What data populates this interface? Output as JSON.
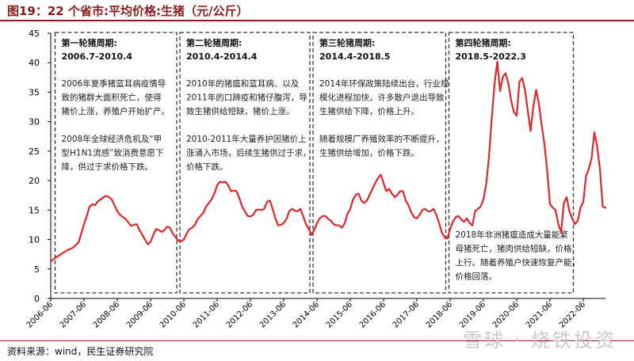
{
  "figure": {
    "title": "图19：22 个省市:平均价格:生猪（元/公斤）",
    "source": "资料来源：wind，民生证券研究院",
    "watermark": "雪球 · 烧铁投资"
  },
  "colors": {
    "line": "#e0262a",
    "header": "#8b1a1a",
    "box": "#333333"
  },
  "chart_data": {
    "type": "line",
    "title": "22 个省市:平均价格:生猪",
    "ylabel": "元/公斤",
    "xlabel": "",
    "ylim": [
      0,
      45
    ],
    "yticks": [
      0,
      5,
      10,
      15,
      20,
      25,
      30,
      35,
      40,
      45
    ],
    "xticks": [
      "2006-06",
      "2007-06",
      "2008-06",
      "2009-06",
      "2010-06",
      "2011-06",
      "2012-06",
      "2013-06",
      "2014-06",
      "2015-06",
      "2016-06",
      "2017-06",
      "2018-06",
      "2019-06",
      "2020-06",
      "2021-06",
      "2022-06"
    ],
    "series": [
      {
        "values": [
          [
            "2006-06",
            6.3
          ],
          [
            "2006-08",
            7.0
          ],
          [
            "2006-10",
            7.6
          ],
          [
            "2006-12",
            8.2
          ],
          [
            "2007-02",
            8.6
          ],
          [
            "2007-04",
            9.5
          ],
          [
            "2007-05",
            11.0
          ],
          [
            "2007-06",
            12.6
          ],
          [
            "2007-07",
            14.0
          ],
          [
            "2007-08",
            15.6
          ],
          [
            "2007-09",
            16.0
          ],
          [
            "2007-10",
            15.8
          ],
          [
            "2007-11",
            16.5
          ],
          [
            "2007-12",
            16.8
          ],
          [
            "2008-01",
            17.2
          ],
          [
            "2008-02",
            17.4
          ],
          [
            "2008-03",
            17.2
          ],
          [
            "2008-04",
            16.8
          ],
          [
            "2008-05",
            15.8
          ],
          [
            "2008-06",
            14.8
          ],
          [
            "2008-07",
            14.2
          ],
          [
            "2008-08",
            13.8
          ],
          [
            "2008-09",
            13.5
          ],
          [
            "2008-10",
            12.9
          ],
          [
            "2008-11",
            12.3
          ],
          [
            "2008-12",
            12.5
          ],
          [
            "2009-01",
            12.6
          ],
          [
            "2009-02",
            11.6
          ],
          [
            "2009-03",
            10.8
          ],
          [
            "2009-04",
            10.0
          ],
          [
            "2009-05",
            9.2
          ],
          [
            "2009-06",
            9.6
          ],
          [
            "2009-07",
            10.8
          ],
          [
            "2009-08",
            11.8
          ],
          [
            "2009-09",
            11.6
          ],
          [
            "2009-10",
            11.3
          ],
          [
            "2009-11",
            11.6
          ],
          [
            "2009-12",
            12.2
          ],
          [
            "2010-01",
            12.0
          ],
          [
            "2010-02",
            11.0
          ],
          [
            "2010-03",
            10.4
          ],
          [
            "2010-04",
            9.8
          ],
          [
            "2010-05",
            9.7
          ],
          [
            "2010-06",
            10.0
          ],
          [
            "2010-07",
            11.0
          ],
          [
            "2010-08",
            11.8
          ],
          [
            "2010-09",
            12.0
          ],
          [
            "2010-10",
            12.5
          ],
          [
            "2010-11",
            13.5
          ],
          [
            "2010-12",
            14.0
          ],
          [
            "2011-01",
            14.5
          ],
          [
            "2011-02",
            15.6
          ],
          [
            "2011-03",
            16.2
          ],
          [
            "2011-04",
            16.8
          ],
          [
            "2011-05",
            17.8
          ],
          [
            "2011-06",
            19.2
          ],
          [
            "2011-07",
            19.8
          ],
          [
            "2011-08",
            19.7
          ],
          [
            "2011-09",
            19.8
          ],
          [
            "2011-10",
            19.2
          ],
          [
            "2011-11",
            18.2
          ],
          [
            "2011-12",
            18.3
          ],
          [
            "2012-01",
            18.2
          ],
          [
            "2012-02",
            17.0
          ],
          [
            "2012-03",
            15.6
          ],
          [
            "2012-04",
            14.8
          ],
          [
            "2012-05",
            14.0
          ],
          [
            "2012-06",
            13.9
          ],
          [
            "2012-07",
            14.2
          ],
          [
            "2012-08",
            15.0
          ],
          [
            "2012-09",
            15.1
          ],
          [
            "2012-10",
            15.0
          ],
          [
            "2012-11",
            15.2
          ],
          [
            "2012-12",
            16.4
          ],
          [
            "2013-01",
            16.6
          ],
          [
            "2013-02",
            15.2
          ],
          [
            "2013-03",
            13.6
          ],
          [
            "2013-04",
            12.4
          ],
          [
            "2013-05",
            12.5
          ],
          [
            "2013-06",
            12.8
          ],
          [
            "2013-07",
            13.5
          ],
          [
            "2013-08",
            14.8
          ],
          [
            "2013-09",
            15.2
          ],
          [
            "2013-10",
            14.9
          ],
          [
            "2013-11",
            14.8
          ],
          [
            "2013-12",
            15.2
          ],
          [
            "2014-01",
            14.0
          ],
          [
            "2014-02",
            12.6
          ],
          [
            "2014-03",
            11.8
          ],
          [
            "2014-04",
            10.8
          ],
          [
            "2014-05",
            11.6
          ],
          [
            "2014-06",
            12.8
          ],
          [
            "2014-07",
            13.6
          ],
          [
            "2014-08",
            14.0
          ],
          [
            "2014-09",
            14.0
          ],
          [
            "2014-10",
            13.5
          ],
          [
            "2014-11",
            13.2
          ],
          [
            "2014-12",
            12.6
          ],
          [
            "2015-01",
            12.4
          ],
          [
            "2015-02",
            12.4
          ],
          [
            "2015-03",
            12.0
          ],
          [
            "2015-04",
            12.8
          ],
          [
            "2015-05",
            14.4
          ],
          [
            "2015-06",
            15.2
          ],
          [
            "2015-07",
            16.8
          ],
          [
            "2015-08",
            17.6
          ],
          [
            "2015-09",
            17.8
          ],
          [
            "2015-10",
            16.6
          ],
          [
            "2015-11",
            16.2
          ],
          [
            "2015-12",
            16.6
          ],
          [
            "2016-01",
            17.6
          ],
          [
            "2016-02",
            18.6
          ],
          [
            "2016-03",
            19.6
          ],
          [
            "2016-04",
            20.4
          ],
          [
            "2016-05",
            21.0
          ],
          [
            "2016-06",
            19.6
          ],
          [
            "2016-07",
            18.2
          ],
          [
            "2016-08",
            18.6
          ],
          [
            "2016-09",
            17.8
          ],
          [
            "2016-10",
            17.2
          ],
          [
            "2016-11",
            17.6
          ],
          [
            "2016-12",
            18.2
          ],
          [
            "2017-01",
            18.2
          ],
          [
            "2017-02",
            16.6
          ],
          [
            "2017-03",
            15.8
          ],
          [
            "2017-04",
            14.6
          ],
          [
            "2017-05",
            13.8
          ],
          [
            "2017-06",
            13.6
          ],
          [
            "2017-07",
            14.2
          ],
          [
            "2017-08",
            15.0
          ],
          [
            "2017-09",
            15.2
          ],
          [
            "2017-10",
            14.8
          ],
          [
            "2017-11",
            14.8
          ],
          [
            "2017-12",
            15.2
          ],
          [
            "2018-01",
            14.2
          ],
          [
            "2018-02",
            12.8
          ],
          [
            "2018-03",
            11.2
          ],
          [
            "2018-04",
            10.4
          ],
          [
            "2018-05",
            10.2
          ],
          [
            "2018-06",
            11.8
          ],
          [
            "2018-07",
            13.0
          ],
          [
            "2018-08",
            13.8
          ],
          [
            "2018-09",
            14.0
          ],
          [
            "2018-10",
            13.4
          ],
          [
            "2018-11",
            13.0
          ],
          [
            "2018-12",
            13.6
          ],
          [
            "2019-01",
            12.8
          ],
          [
            "2019-02",
            12.4
          ],
          [
            "2019-03",
            14.8
          ],
          [
            "2019-04",
            15.2
          ],
          [
            "2019-05",
            15.6
          ],
          [
            "2019-06",
            16.8
          ],
          [
            "2019-07",
            19.4
          ],
          [
            "2019-08",
            24.0
          ],
          [
            "2019-09",
            30.6
          ],
          [
            "2019-10",
            36.4
          ],
          [
            "2019-11",
            40.2
          ],
          [
            "2019-12",
            35.2
          ],
          [
            "2020-01",
            37.6
          ],
          [
            "2020-02",
            38.2
          ],
          [
            "2020-03",
            36.4
          ],
          [
            "2020-04",
            33.6
          ],
          [
            "2020-05",
            31.6
          ],
          [
            "2020-06",
            31.0
          ],
          [
            "2020-07",
            36.8
          ],
          [
            "2020-08",
            37.4
          ],
          [
            "2020-09",
            35.4
          ],
          [
            "2020-10",
            31.8
          ],
          [
            "2020-11",
            28.4
          ],
          [
            "2020-12",
            32.6
          ],
          [
            "2021-01",
            35.4
          ],
          [
            "2021-02",
            33.0
          ],
          [
            "2021-03",
            29.4
          ],
          [
            "2021-04",
            26.2
          ],
          [
            "2021-05",
            21.6
          ],
          [
            "2021-06",
            16.0
          ],
          [
            "2021-07",
            15.4
          ],
          [
            "2021-08",
            15.0
          ],
          [
            "2021-09",
            12.6
          ],
          [
            "2021-10",
            11.2
          ],
          [
            "2021-11",
            16.2
          ],
          [
            "2021-12",
            17.2
          ],
          [
            "2022-01",
            14.8
          ],
          [
            "2022-02",
            13.6
          ],
          [
            "2022-03",
            12.6
          ],
          [
            "2022-04",
            13.2
          ],
          [
            "2022-05",
            15.4
          ],
          [
            "2022-06",
            16.4
          ],
          [
            "2022-07",
            20.8
          ],
          [
            "2022-08",
            22.0
          ],
          [
            "2022-09",
            23.8
          ],
          [
            "2022-10",
            28.2
          ],
          [
            "2022-11",
            25.8
          ],
          [
            "2022-12",
            22.0
          ],
          [
            "2023-01",
            15.6
          ],
          [
            "2023-02",
            15.4
          ]
        ]
      }
    ],
    "annotations": [
      {
        "x_start": "2006-07",
        "x_end": "2010-04",
        "heading": "第一轮猪周期:",
        "period": "2006.7-2010.4",
        "lines": [
          "2006年夏季猪蓝耳病疫情导",
          "致的猪群大面积死亡，使得",
          "猪价上涨，养殖户开始扩产。",
          "",
          "2008年全球经济危机及“甲",
          "型H1N1流感”致消费意愿下",
          "降，供过于求价格下跌。"
        ]
      },
      {
        "x_start": "2010-04",
        "x_end": "2014-04",
        "heading": "第二轮猪周期:",
        "period": "2010.4-2014.4",
        "lines": [
          "2010年的猪瘟和蓝耳病、以及",
          "2011年的口蹄疫和猪仔腹泻，导",
          "致生猪供给短缺，猪价上涨。",
          "",
          "2010-2011年大量养护因猪价上",
          "涨涌入市场，后续生猪供过于求，",
          "价格下跌。"
        ]
      },
      {
        "x_start": "2014-04",
        "x_end": "2018-05",
        "heading": "第三轮猪周期:",
        "period": "2014.4-2018.5",
        "lines": [
          "2014年环保政策陆续出台，行业规",
          "模化进程加快，许多散户退出导致",
          "生猪供给下降，价格上升。",
          "",
          "随着规模厂养殖效率的不断提升，",
          "生猪供给增加，价格下跌。"
        ]
      },
      {
        "x_start": "2018-05",
        "x_end": "2022-03",
        "heading": "第四轮猪周期:",
        "period": "2018.5-2022.3",
        "lines": [
          "2018年非洲猪瘟造成大量能繁",
          "母猪死亡，猪肉供给短缺，价格",
          "上行。随着养殖户快速恢复产能，",
          "价格回落。"
        ]
      }
    ]
  }
}
